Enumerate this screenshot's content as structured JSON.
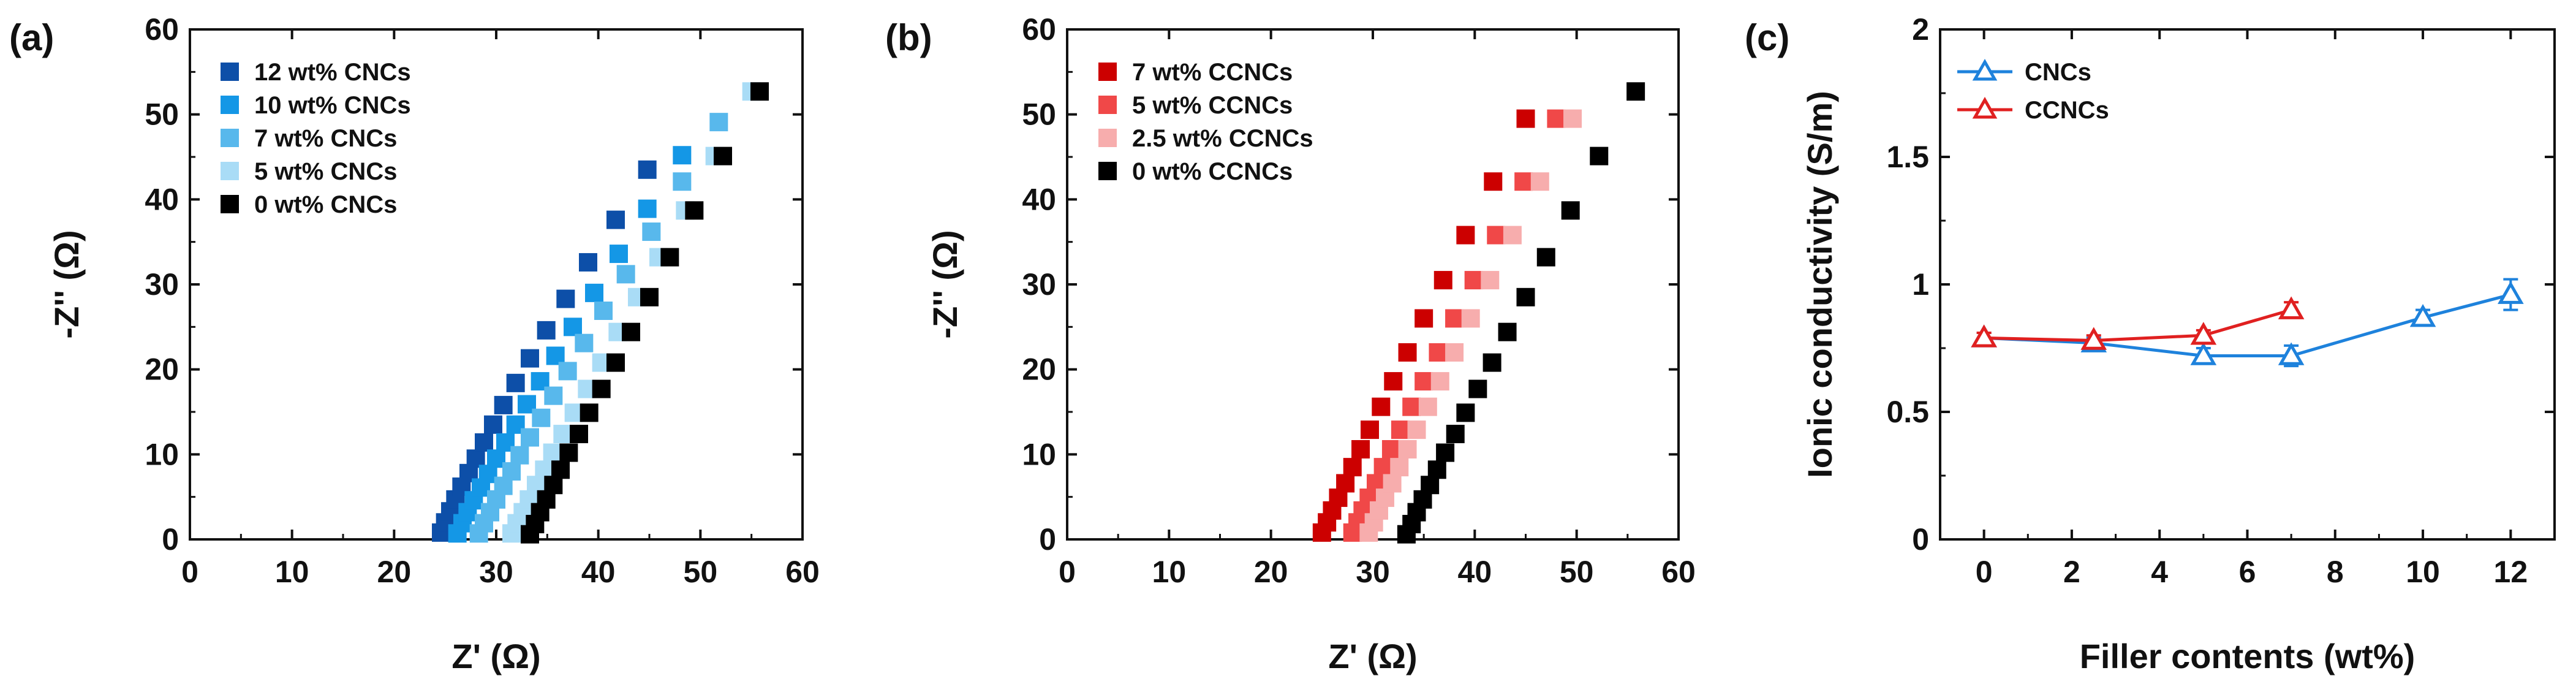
{
  "chart_data": [
    {
      "panel": "(a)",
      "type": "scatter",
      "xlabel": "Z' (Ω)",
      "ylabel": "-Z'' (Ω)",
      "xlim": [
        0,
        60
      ],
      "ylim": [
        0,
        60
      ],
      "xticks": [
        0,
        10,
        20,
        30,
        40,
        50,
        60
      ],
      "yticks": [
        0,
        10,
        20,
        30,
        40,
        50,
        60
      ],
      "legend_position": "top-left",
      "series": [
        {
          "name": "12 wt% CNCs",
          "color": "#0d4fa8",
          "x": [
            24.6,
            25.0,
            25.5,
            26.0,
            26.6,
            27.3,
            28.0,
            28.8,
            29.7,
            30.7,
            31.9,
            33.3,
            34.9,
            36.8,
            39.0,
            41.7,
            44.8
          ],
          "y": [
            0.8,
            2.0,
            3.3,
            4.7,
            6.2,
            7.8,
            9.5,
            11.4,
            13.5,
            15.8,
            18.4,
            21.3,
            24.6,
            28.3,
            32.6,
            37.6,
            43.5
          ]
        },
        {
          "name": "10 wt% CNCs",
          "color": "#1497e6",
          "x": [
            26.2,
            26.7,
            27.2,
            27.8,
            28.5,
            29.2,
            30.0,
            30.9,
            31.9,
            33.0,
            34.3,
            35.8,
            37.5,
            39.6,
            42.0,
            44.8,
            48.2
          ],
          "y": [
            0.7,
            1.9,
            3.2,
            4.6,
            6.1,
            7.7,
            9.5,
            11.4,
            13.5,
            15.9,
            18.6,
            21.6,
            25.0,
            29.0,
            33.6,
            38.9,
            45.2
          ]
        },
        {
          "name": "7 wt% CNCs",
          "color": "#58b8ec",
          "x": [
            28.3,
            28.8,
            29.4,
            30.0,
            30.7,
            31.5,
            32.3,
            33.3,
            34.4,
            35.6,
            37.0,
            38.6,
            40.5,
            42.7,
            45.2,
            48.2,
            51.8
          ],
          "y": [
            0.7,
            1.9,
            3.2,
            4.7,
            6.3,
            8.0,
            9.9,
            12.0,
            14.3,
            16.9,
            19.8,
            23.1,
            26.9,
            31.2,
            36.2,
            42.1,
            49.1
          ]
        },
        {
          "name": "5 wt% CNCs",
          "color": "#a9dcf6",
          "x": [
            31.5,
            32.0,
            32.6,
            33.2,
            33.9,
            34.7,
            35.5,
            36.5,
            37.6,
            38.9,
            40.3,
            41.9,
            43.8,
            45.9,
            48.5,
            51.4,
            55.0
          ],
          "y": [
            0.7,
            1.9,
            3.2,
            4.7,
            6.4,
            8.2,
            10.2,
            12.4,
            14.9,
            17.7,
            20.8,
            24.4,
            28.5,
            33.2,
            38.7,
            45.1,
            52.7
          ]
        },
        {
          "name": "0 wt% CNCs",
          "color": "#000000",
          "x": [
            33.3,
            33.8,
            34.3,
            34.9,
            35.6,
            36.3,
            37.1,
            38.1,
            39.1,
            40.3,
            41.7,
            43.2,
            45.0,
            47.0,
            49.4,
            52.2,
            55.8
          ],
          "y": [
            0.6,
            1.8,
            3.2,
            4.7,
            6.4,
            8.2,
            10.2,
            12.4,
            14.9,
            17.7,
            20.8,
            24.4,
            28.5,
            33.2,
            38.7,
            45.1,
            52.7
          ]
        }
      ]
    },
    {
      "panel": "(b)",
      "type": "scatter",
      "xlabel": "Z' (Ω)",
      "ylabel": "-Z'' (Ω)",
      "xlim": [
        0,
        60
      ],
      "ylim": [
        0,
        60
      ],
      "xticks": [
        0,
        10,
        20,
        30,
        40,
        50,
        60
      ],
      "yticks": [
        0,
        10,
        20,
        30,
        40,
        50,
        60
      ],
      "legend_position": "top-left",
      "series": [
        {
          "name": "7 wt% CCNCs",
          "color": "#cc0000",
          "x": [
            25.0,
            25.5,
            26.0,
            26.6,
            27.3,
            28.0,
            28.8,
            29.7,
            30.8,
            32.0,
            33.4,
            35.0,
            36.9,
            39.1,
            41.8,
            45.0
          ],
          "y": [
            0.8,
            2.0,
            3.4,
            4.9,
            6.6,
            8.5,
            10.6,
            12.9,
            15.6,
            18.6,
            22.0,
            26.0,
            30.5,
            35.8,
            42.1,
            49.5
          ]
        },
        {
          "name": "5 wt% CCNCs",
          "color": "#f04848",
          "x": [
            28.0,
            28.5,
            29.0,
            29.6,
            30.3,
            31.0,
            31.8,
            32.7,
            33.8,
            35.0,
            36.4,
            38.0,
            39.9,
            42.1,
            44.8,
            48.0
          ],
          "y": [
            0.8,
            2.0,
            3.4,
            4.9,
            6.6,
            8.5,
            10.6,
            12.9,
            15.6,
            18.6,
            22.0,
            26.0,
            30.5,
            35.8,
            42.1,
            49.5
          ]
        },
        {
          "name": "2.5 wt% CCNCs",
          "color": "#f7adad",
          "x": [
            29.6,
            30.1,
            30.6,
            31.2,
            31.9,
            32.6,
            33.4,
            34.3,
            35.4,
            36.6,
            38.0,
            39.6,
            41.5,
            43.7,
            46.4,
            49.6
          ],
          "y": [
            0.8,
            2.0,
            3.4,
            4.9,
            6.6,
            8.5,
            10.6,
            12.9,
            15.6,
            18.6,
            22.0,
            26.0,
            30.5,
            35.8,
            42.1,
            49.5
          ]
        },
        {
          "name": "0 wt% CCNCs",
          "color": "#000000",
          "x": [
            33.3,
            33.8,
            34.3,
            34.9,
            35.6,
            36.3,
            37.1,
            38.1,
            39.1,
            40.3,
            41.7,
            43.2,
            45.0,
            47.0,
            49.4,
            52.2,
            55.8
          ],
          "y": [
            0.6,
            1.8,
            3.2,
            4.7,
            6.4,
            8.2,
            10.2,
            12.4,
            14.9,
            17.7,
            20.8,
            24.4,
            28.5,
            33.2,
            38.7,
            45.1,
            52.7
          ]
        }
      ]
    },
    {
      "panel": "(c)",
      "type": "line",
      "xlabel": "Filler contents (wt%)",
      "ylabel": "Ionic conductivity (S/m)",
      "xlim": [
        -1,
        13
      ],
      "ylim": [
        0,
        2
      ],
      "xticks": [
        0,
        2,
        4,
        6,
        8,
        10,
        12
      ],
      "yticks": [
        0,
        0.5,
        1,
        1.5,
        2
      ],
      "ytick_labels": [
        "0",
        "0.5",
        "1",
        "1.5",
        "2"
      ],
      "legend_position": "top-left",
      "series": [
        {
          "name": "CNCs",
          "color": "#1e82dc",
          "x": [
            0,
            2.5,
            5,
            7,
            10,
            12
          ],
          "y": [
            0.79,
            0.77,
            0.72,
            0.72,
            0.87,
            0.96
          ],
          "err": [
            0.02,
            0.02,
            0.03,
            0.04,
            0.03,
            0.06
          ]
        },
        {
          "name": "CCNCs",
          "color": "#e02020",
          "x": [
            0,
            2.5,
            5,
            7
          ],
          "y": [
            0.79,
            0.78,
            0.8,
            0.9
          ],
          "err": [
            0.02,
            0.02,
            0.02,
            0.03
          ]
        }
      ]
    }
  ]
}
